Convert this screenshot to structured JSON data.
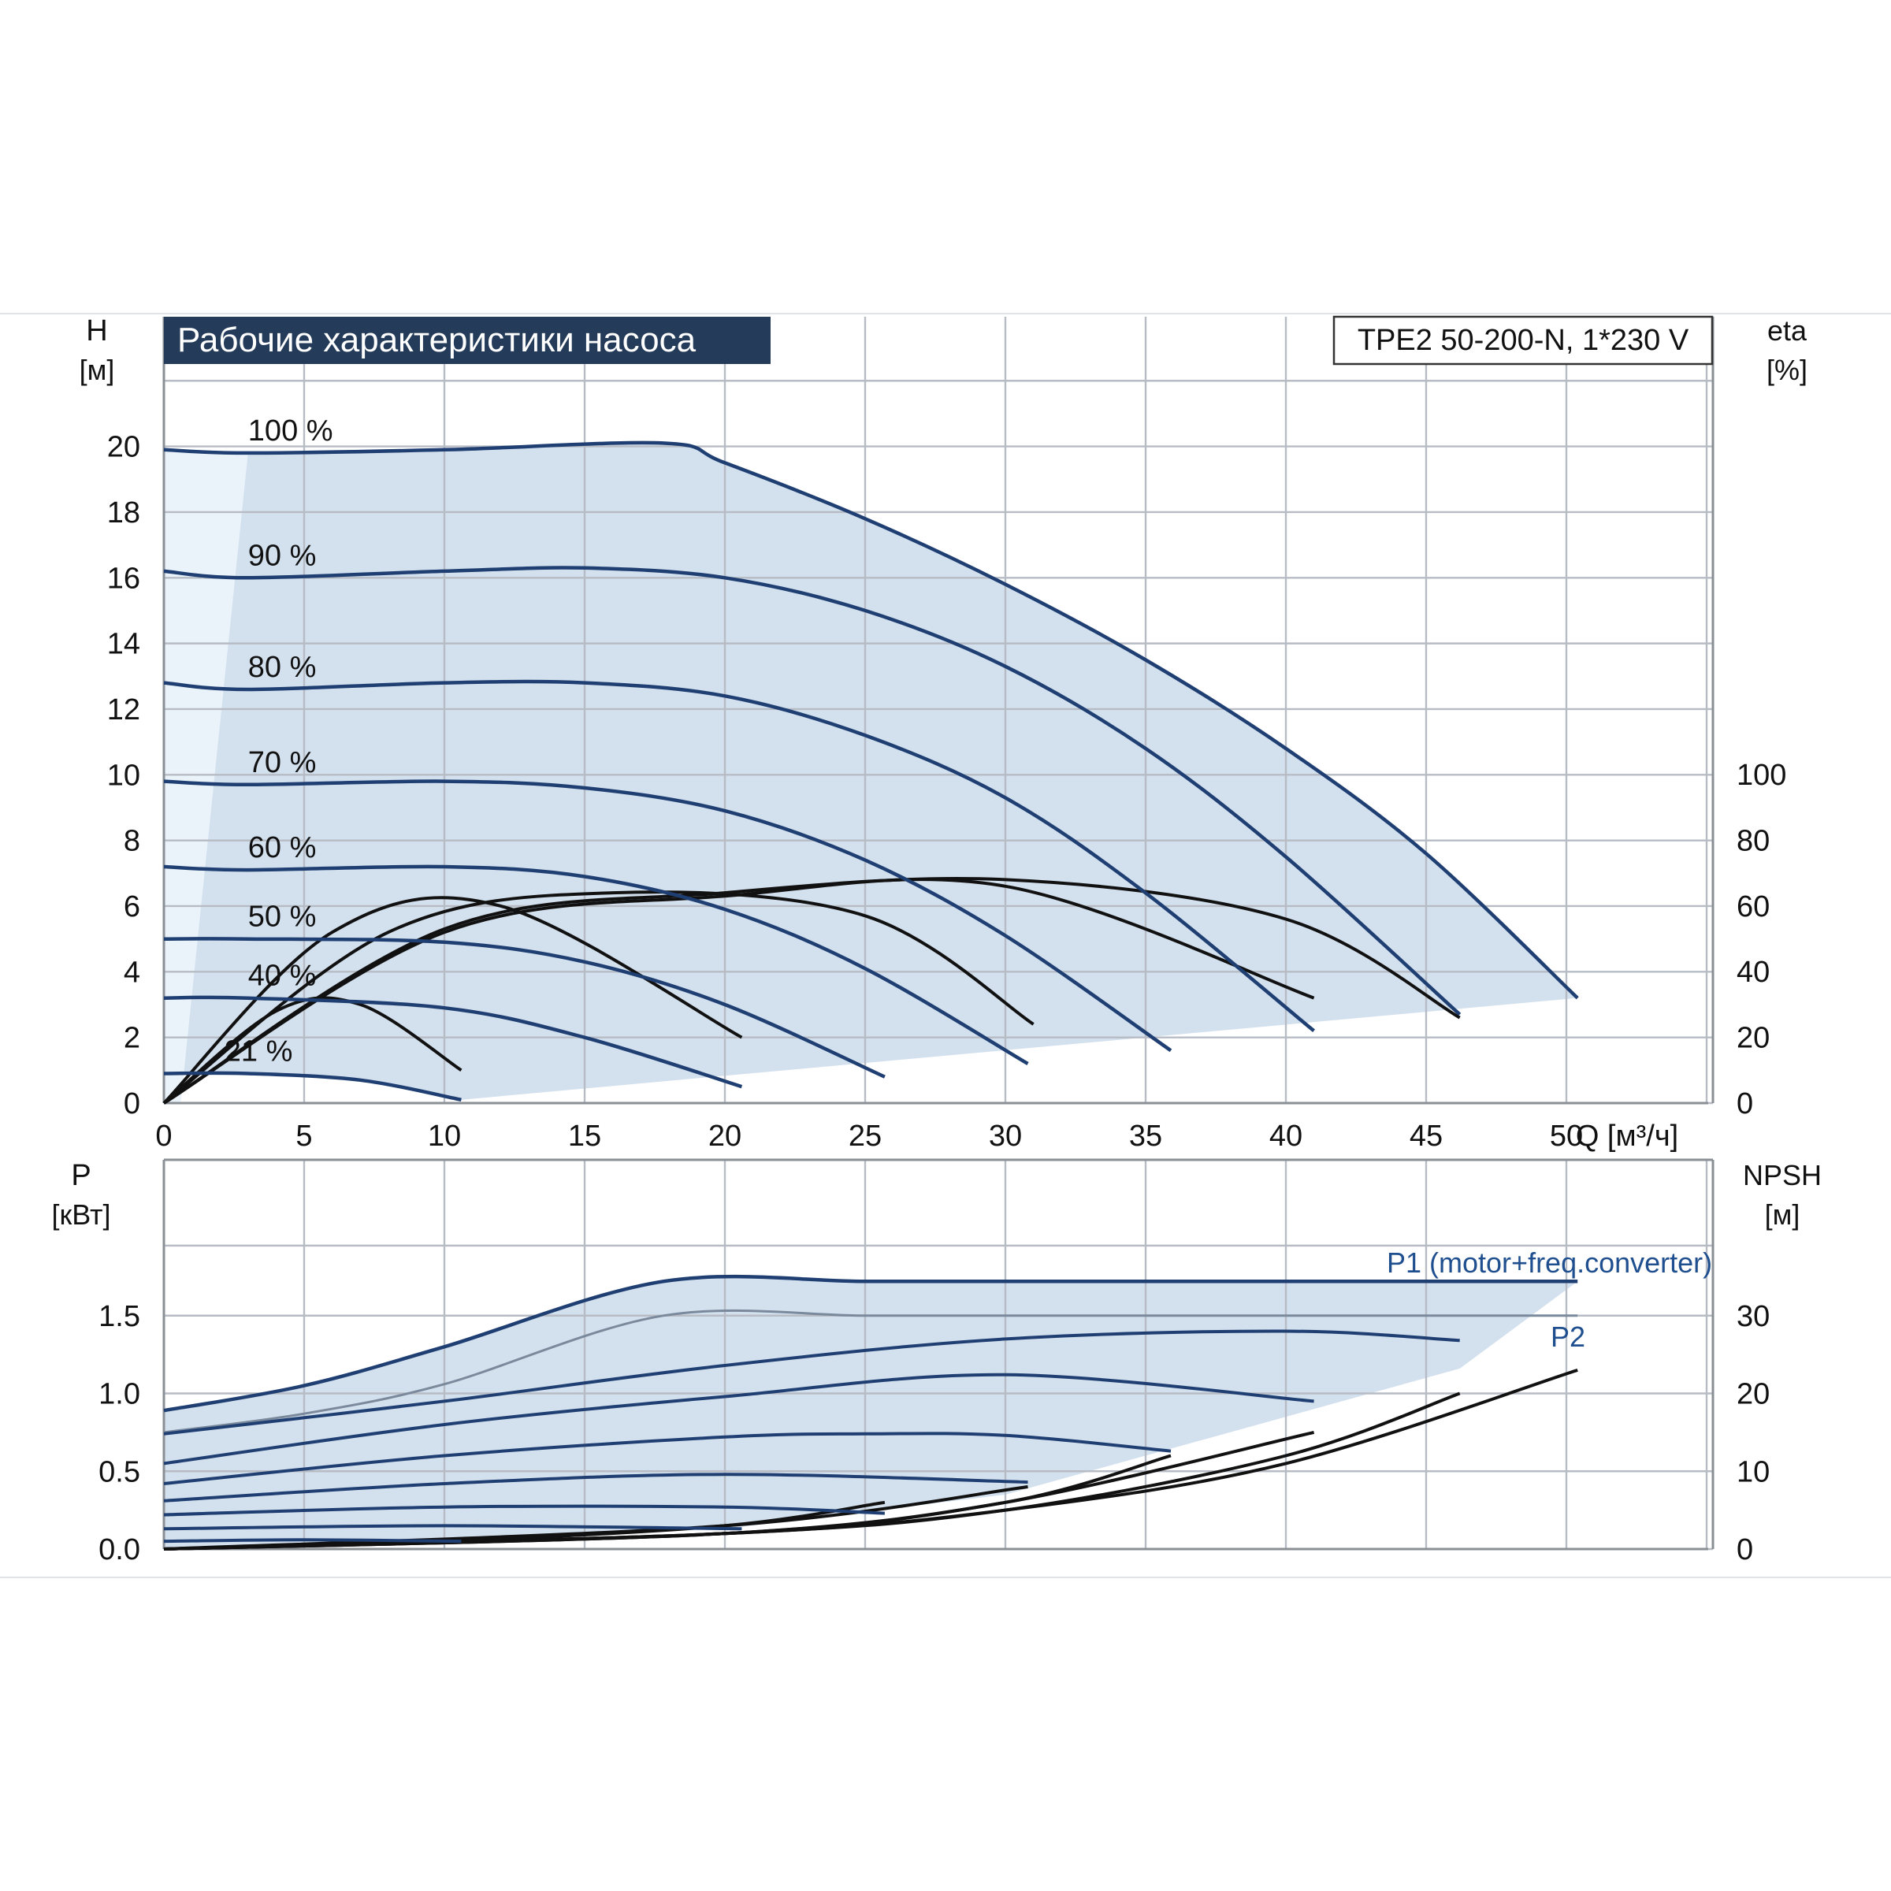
{
  "chart_data": [
    {
      "type": "line",
      "title": "Рабочие характеристики насоса",
      "model_label": "TPE2 50-200-N, 1*230 V",
      "xlabel": "Q [м³/ч]",
      "x_unit_label": "Q [м³/ч]",
      "ylabel_left_line1": "H",
      "ylabel_left_line2": "[м]",
      "ylabel_right_line1": "eta",
      "ylabel_right_line2": "[%]",
      "xlim": [
        0,
        55
      ],
      "ylim_left": [
        0,
        22
      ],
      "ylim_right": [
        0,
        100
      ],
      "grid": true,
      "x_ticks": [
        "0",
        "5",
        "10",
        "15",
        "20",
        "25",
        "30",
        "35",
        "40",
        "45",
        "50"
      ],
      "y_ticks_left": [
        "0",
        "2",
        "4",
        "6",
        "8",
        "10",
        "12",
        "14",
        "16",
        "18",
        "20"
      ],
      "y_ticks_right": [
        "0",
        "20",
        "40",
        "60",
        "80",
        "100"
      ],
      "series": [
        {
          "name": "100 %",
          "x": [
            0,
            3,
            10,
            17.8,
            20,
            25,
            30,
            35,
            40,
            45,
            50.4
          ],
          "y": [
            19.9,
            19.8,
            19.9,
            20.1,
            19.5,
            17.8,
            15.8,
            13.5,
            10.8,
            7.6,
            3.2
          ]
        },
        {
          "name": "90 %",
          "x": [
            0,
            3,
            10,
            15,
            20,
            25,
            30,
            35,
            40,
            46.2
          ],
          "y": [
            16.2,
            16.0,
            16.2,
            16.3,
            16.0,
            15.0,
            13.3,
            10.8,
            7.5,
            2.7
          ]
        },
        {
          "name": "80 %",
          "x": [
            0,
            3,
            10,
            15,
            20,
            25,
            30,
            35,
            41
          ],
          "y": [
            12.8,
            12.6,
            12.8,
            12.8,
            12.4,
            11.2,
            9.3,
            6.4,
            2.2
          ]
        },
        {
          "name": "70 %",
          "x": [
            0,
            3,
            10,
            15,
            20,
            25,
            30,
            35.9
          ],
          "y": [
            9.8,
            9.7,
            9.8,
            9.6,
            8.9,
            7.4,
            5.1,
            1.6
          ]
        },
        {
          "name": "60 %",
          "x": [
            0,
            3,
            10,
            15,
            20,
            25,
            30.8
          ],
          "y": [
            7.2,
            7.1,
            7.2,
            6.9,
            5.9,
            4.1,
            1.2
          ]
        },
        {
          "name": "50 %",
          "x": [
            0,
            3,
            10,
            15,
            20,
            25.7
          ],
          "y": [
            5.0,
            5.0,
            4.9,
            4.3,
            3.0,
            0.8
          ]
        },
        {
          "name": "40 %",
          "x": [
            0,
            3,
            10,
            15,
            20.6
          ],
          "y": [
            3.2,
            3.2,
            2.9,
            2.0,
            0.5
          ]
        },
        {
          "name": "21 %",
          "x": [
            0,
            3,
            7,
            10.6
          ],
          "y": [
            0.9,
            0.9,
            0.7,
            0.1
          ]
        }
      ],
      "series_labels": [
        "100 %",
        "90 %",
        "80 %",
        "70 %",
        "60 %",
        "50 %",
        "40 %",
        "21 %"
      ],
      "efficiency_curves": [
        {
          "x": [
            0,
            10,
            20,
            30,
            40,
            46.2
          ],
          "y": [
            0,
            53,
            64,
            68,
            56,
            26
          ]
        },
        {
          "x": [
            0,
            10,
            20,
            30,
            41
          ],
          "y": [
            0,
            52,
            63,
            66,
            32
          ]
        },
        {
          "x": [
            0,
            8,
            16,
            25,
            31
          ],
          "y": [
            0,
            52,
            64,
            57,
            24
          ]
        },
        {
          "x": [
            0,
            6,
            12,
            20.6
          ],
          "y": [
            0,
            52,
            60,
            20
          ]
        },
        {
          "x": [
            0,
            4,
            7,
            10.6
          ],
          "y": [
            0,
            28,
            30,
            10
          ]
        }
      ]
    },
    {
      "type": "line",
      "xlabel": "Q [м³/ч]",
      "ylabel_left_line1": "P",
      "ylabel_left_line2": "[кВт]",
      "ylabel_right_line1": "NPSH",
      "ylabel_right_line2": "[м]",
      "xlim": [
        0,
        55
      ],
      "ylim_left": [
        0,
        2.0
      ],
      "ylim_right": [
        0,
        40
      ],
      "grid": true,
      "y_ticks_left": [
        "0.0",
        "0.5",
        "1.0",
        "1.5"
      ],
      "y_ticks_right": [
        "0",
        "10",
        "20",
        "30"
      ],
      "series": [
        {
          "name": "P1 (motor+freq.converter)",
          "x": [
            0,
            5,
            10,
            17.8,
            25,
            30,
            40,
            50.4
          ],
          "y": [
            0.89,
            1.05,
            1.3,
            1.72,
            1.72,
            1.72,
            1.72,
            1.72
          ]
        },
        {
          "name": "P2",
          "x": [
            0,
            5,
            10,
            17.8,
            25,
            30,
            40,
            50.4
          ],
          "y": [
            0.75,
            0.87,
            1.06,
            1.5,
            1.5,
            1.5,
            1.5,
            1.5
          ]
        }
      ],
      "power_curves": [
        {
          "x": [
            0,
            10,
            20,
            30,
            40,
            46.2
          ],
          "y": [
            0.74,
            0.95,
            1.18,
            1.35,
            1.4,
            1.34
          ]
        },
        {
          "x": [
            0,
            10,
            20,
            30,
            41
          ],
          "y": [
            0.55,
            0.8,
            0.98,
            1.12,
            0.95
          ]
        },
        {
          "x": [
            0,
            10,
            20,
            25,
            30,
            35.9
          ],
          "y": [
            0.42,
            0.6,
            0.72,
            0.74,
            0.73,
            0.63
          ]
        },
        {
          "x": [
            0,
            10,
            20,
            30.8
          ],
          "y": [
            0.31,
            0.42,
            0.48,
            0.43
          ]
        },
        {
          "x": [
            0,
            10,
            20,
            25.7
          ],
          "y": [
            0.22,
            0.27,
            0.27,
            0.23
          ]
        },
        {
          "x": [
            0,
            10,
            20.6
          ],
          "y": [
            0.13,
            0.15,
            0.13
          ]
        },
        {
          "x": [
            0,
            5,
            10.6
          ],
          "y": [
            0.05,
            0.06,
            0.05
          ]
        }
      ],
      "npsh_curves": [
        {
          "x": [
            0,
            20,
            30,
            40,
            50.4
          ],
          "y": [
            0,
            2,
            5,
            11,
            23
          ]
        },
        {
          "x": [
            0,
            20,
            30,
            40,
            46.2
          ],
          "y": [
            0,
            2,
            5,
            12,
            20
          ]
        },
        {
          "x": [
            0,
            20,
            30,
            41
          ],
          "y": [
            0,
            2,
            6,
            15
          ]
        },
        {
          "x": [
            0,
            20,
            30,
            35.9
          ],
          "y": [
            0,
            2,
            6,
            12
          ]
        },
        {
          "x": [
            0,
            20,
            30.8
          ],
          "y": [
            0,
            3,
            8
          ]
        },
        {
          "x": [
            0,
            10,
            20,
            25.7
          ],
          "y": [
            0,
            1,
            3,
            6
          ]
        }
      ],
      "series_labels": [
        "P1 (motor+freq.converter)",
        "P2"
      ]
    }
  ]
}
